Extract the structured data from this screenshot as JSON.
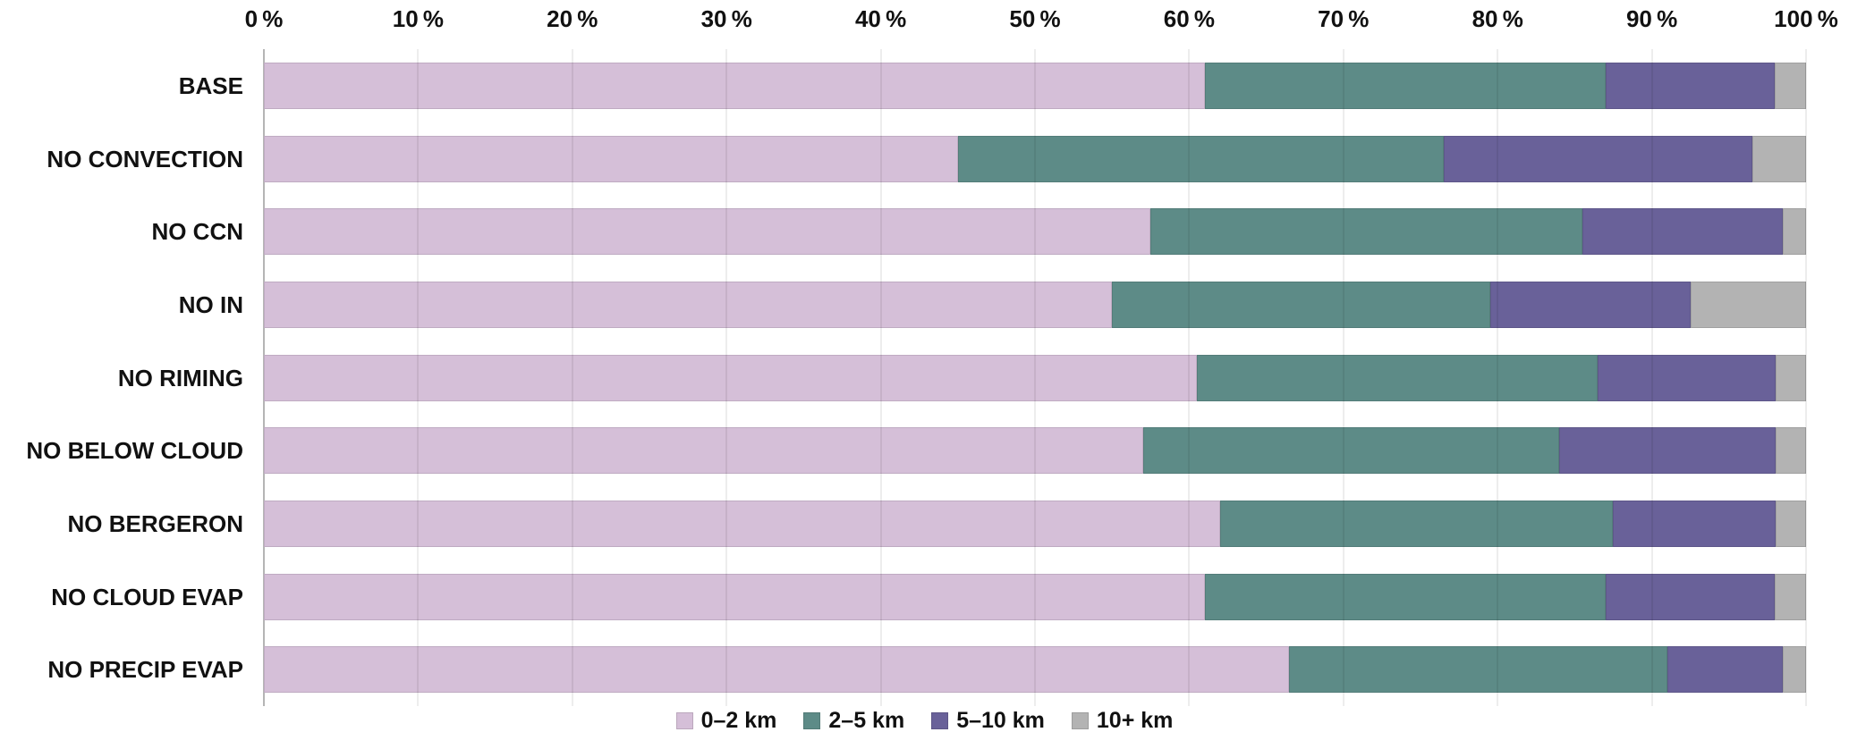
{
  "chart_data": {
    "type": "bar",
    "orientation": "horizontal",
    "stacked": true,
    "value_unit": "percent",
    "title": "",
    "categories": [
      "BASE",
      "NO CONVECTION",
      "NO CCN",
      "NO IN",
      "NO RIMING",
      "NO BELOW CLOUD",
      "NO BERGERON",
      "NO CLOUD EVAP",
      "NO PRECIP EVAP"
    ],
    "series": [
      {
        "name": "0–2 km",
        "color": "#d5bfd8",
        "values": [
          61,
          45,
          57.5,
          55,
          60.5,
          57,
          62,
          61,
          66.5
        ]
      },
      {
        "name": "2–5 km",
        "color": "#5d8b87",
        "values": [
          26,
          31.5,
          28,
          24.5,
          26,
          27,
          25.5,
          26,
          24.5
        ]
      },
      {
        "name": "5–10 km",
        "color": "#696199",
        "values": [
          11,
          20,
          13,
          13,
          11.5,
          14,
          10.5,
          11,
          7.5
        ]
      },
      {
        "name": "10+ km",
        "color": "#b3b3b3",
        "values": [
          2,
          3.5,
          1.5,
          7.5,
          2,
          2,
          2,
          2,
          1.5
        ]
      }
    ],
    "x_axis": {
      "min": 0,
      "max": 100,
      "tick_step": 10,
      "tick_labels": [
        "0 %",
        "10 %",
        "20 %",
        "30 %",
        "40 %",
        "50 %",
        "60 %",
        "70 %",
        "80 %",
        "90 %",
        "100 %"
      ]
    },
    "legend": {
      "position": "bottom",
      "entries": [
        "0–2 km",
        "2–5 km",
        "5–10 km",
        "10+ km"
      ]
    },
    "grid": true
  },
  "colors": {
    "background": "#ffffff",
    "gridline": "rgba(0,0,0,0.07)",
    "axis_line": "#b5b5b5",
    "text": "#111111"
  }
}
